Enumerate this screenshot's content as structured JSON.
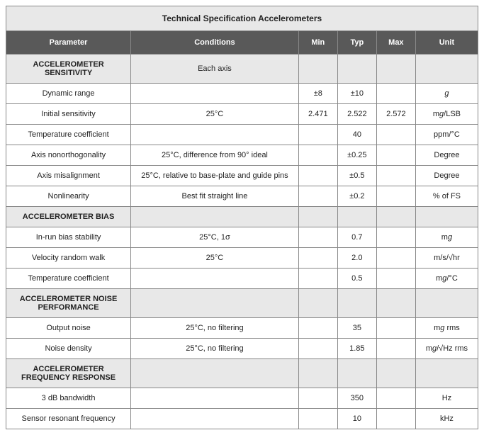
{
  "title": "Technical Specification Accelerometers",
  "columns": [
    "Parameter",
    "Conditions",
    "Min",
    "Typ",
    "Max",
    "Unit"
  ],
  "colors": {
    "header_bg": "#595959",
    "header_fg": "#ffffff",
    "section_bg": "#e8e8e8",
    "border": "#888888",
    "text": "#222222"
  },
  "rows": [
    {
      "type": "section",
      "param": "ACCELEROMETER SENSITIVITY",
      "cond": "Each axis",
      "min": "",
      "typ": "",
      "max": "",
      "unit": ""
    },
    {
      "type": "data",
      "param": "Dynamic range",
      "cond": "",
      "min": "±8",
      "typ": "±10",
      "max": "",
      "unit_html": "<span class='gital'>g</span>"
    },
    {
      "type": "data",
      "param": "Initial sensitivity",
      "cond": "25°C",
      "min": "2.471",
      "typ": "2.522",
      "max": "2.572",
      "unit_html": "m<span class='gital'>g</span>/LSB"
    },
    {
      "type": "data",
      "param": "Temperature coefficient",
      "cond": "",
      "min": "",
      "typ": "40",
      "max": "",
      "unit": "ppm/°C"
    },
    {
      "type": "data",
      "param": "Axis nonorthogonality",
      "cond": "25°C, difference from 90° ideal",
      "min": "",
      "typ": "±0.25",
      "max": "",
      "unit": "Degree"
    },
    {
      "type": "data",
      "param": "Axis misalignment",
      "cond": "25°C, relative to base-plate and guide pins",
      "min": "",
      "typ": "±0.5",
      "max": "",
      "unit": "Degree"
    },
    {
      "type": "data",
      "param": "Nonlinearity",
      "cond": "Best fit straight line",
      "min": "",
      "typ": "±0.2",
      "max": "",
      "unit": "% of FS"
    },
    {
      "type": "section",
      "param": "ACCELEROMETER BIAS",
      "cond": "",
      "min": "",
      "typ": "",
      "max": "",
      "unit": ""
    },
    {
      "type": "data",
      "param": "In-run bias stability",
      "cond": "25°C, 1σ",
      "min": "",
      "typ": "0.7",
      "max": "",
      "unit_html": "m<span class='gital'>g</span>"
    },
    {
      "type": "data",
      "param": "Velocity random walk",
      "cond": "25°C",
      "min": "",
      "typ": "2.0",
      "max": "",
      "unit": "m/s/√hr"
    },
    {
      "type": "data",
      "param": "Temperature coefficient",
      "cond": "",
      "min": "",
      "typ": "0.5",
      "max": "",
      "unit_html": "m<span class='gital'>g</span>/°C"
    },
    {
      "type": "section",
      "param": "ACCELEROMETER NOISE PERFORMANCE",
      "cond": "",
      "min": "",
      "typ": "",
      "max": "",
      "unit": ""
    },
    {
      "type": "data",
      "param": "Output noise",
      "cond": "25°C, no filtering",
      "min": "",
      "typ": "35",
      "max": "",
      "unit_html": "m<span class='gital'>g</span> rms"
    },
    {
      "type": "data",
      "param": "Noise density",
      "cond": "25°C, no filtering",
      "min": "",
      "typ": "1.85",
      "max": "",
      "unit_html": "m<span class='gital'>g</span>/√Hz rms"
    },
    {
      "type": "section",
      "param": "ACCELEROMETER FREQUENCY RESPONSE",
      "cond": "",
      "min": "",
      "typ": "",
      "max": "",
      "unit": ""
    },
    {
      "type": "data",
      "param": "3 dB bandwidth",
      "cond": "",
      "min": "",
      "typ": "350",
      "max": "",
      "unit": "Hz"
    },
    {
      "type": "data",
      "param": "Sensor resonant frequency",
      "cond": "",
      "min": "",
      "typ": "10",
      "max": "",
      "unit": "kHz"
    }
  ]
}
